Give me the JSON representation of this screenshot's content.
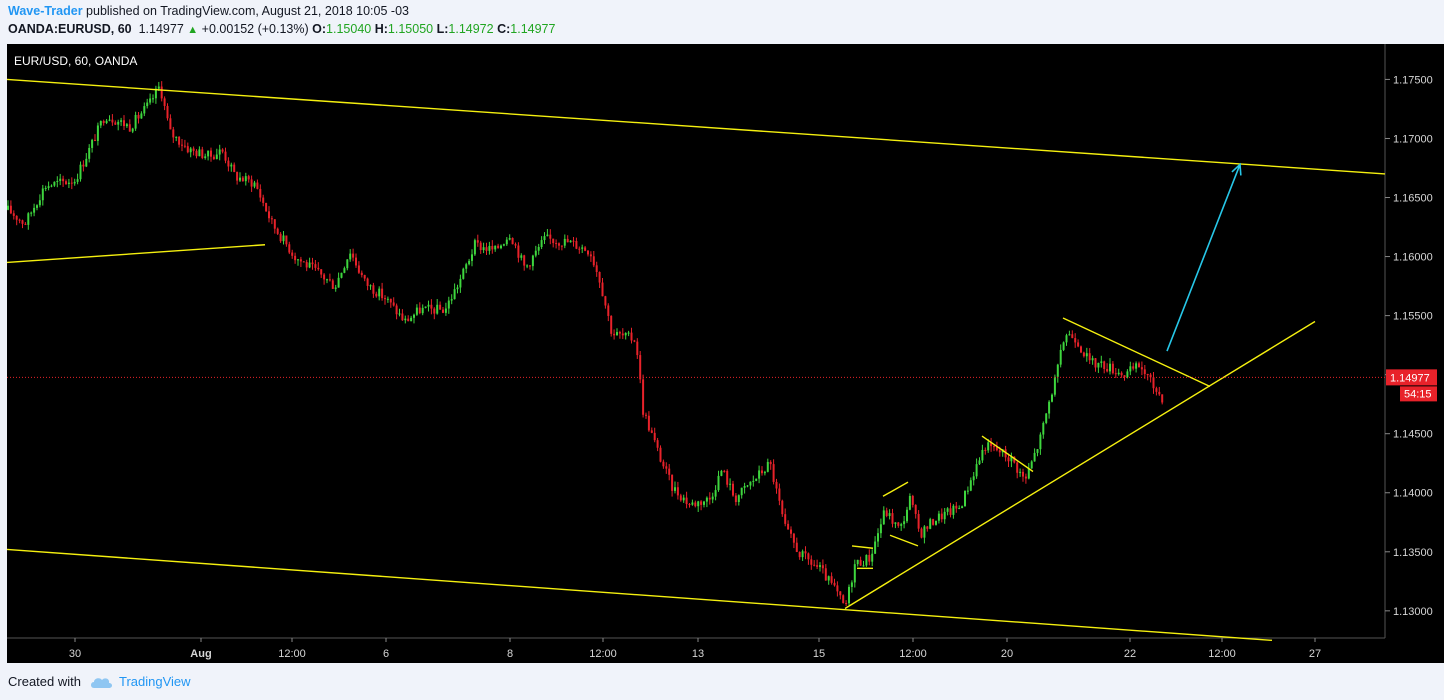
{
  "header": {
    "author": "Wave-Trader",
    "published_text": " published on TradingView.com, August 21, 2018 10:05 -03",
    "symbol": "OANDA:EURUSD, 60",
    "price": "1.14977",
    "change": "+0.00152 (+0.13%)",
    "o_label": "O:",
    "o_value": "1.15040",
    "h_label": "H:",
    "h_value": "1.15050",
    "l_label": "L:",
    "l_value": "1.14972",
    "c_label": "C:",
    "c_value": "1.14977"
  },
  "footer": {
    "created_with": "Created with",
    "brand": "TradingView"
  },
  "colors": {
    "background": "#000000",
    "up": "#3ed63e",
    "down": "#e8222a",
    "trendline": "#f5f00f",
    "arrow": "#27c7e8",
    "price_line": "#e8222a",
    "axis_bg": "#000000",
    "axis_text": "#d6d6d6"
  },
  "chart_data": {
    "type": "candlestick",
    "title": "EUR/USD, 60, OANDA",
    "x_tick_labels": [
      "30",
      "Aug",
      "12:00",
      "6",
      "8",
      "12:00",
      "13",
      "15",
      "12:00",
      "20",
      "22",
      "12:00",
      "27"
    ],
    "y_ticks": [
      "1.17500",
      "1.17000",
      "1.16500",
      "1.16000",
      "1.15500",
      "1.15000",
      "1.14500",
      "1.14000",
      "1.13500",
      "1.13000"
    ],
    "ylim": [
      1.1277,
      1.178
    ],
    "current_price": 1.14977,
    "current_price_label": "1.14977",
    "countdown_label": "54:15",
    "grid": false,
    "path": [
      [
        0,
        1.1645
      ],
      [
        25,
        1.1628
      ],
      [
        45,
        1.166
      ],
      [
        75,
        1.1665
      ],
      [
        90,
        1.1692
      ],
      [
        105,
        1.172
      ],
      [
        130,
        1.171
      ],
      [
        150,
        1.173
      ],
      [
        160,
        1.1745
      ],
      [
        170,
        1.1705
      ],
      [
        190,
        1.169
      ],
      [
        210,
        1.1685
      ],
      [
        222,
        1.169
      ],
      [
        235,
        1.1668
      ],
      [
        255,
        1.1662
      ],
      [
        272,
        1.1628
      ],
      [
        295,
        1.16
      ],
      [
        320,
        1.1585
      ],
      [
        335,
        1.1575
      ],
      [
        350,
        1.1605
      ],
      [
        365,
        1.1578
      ],
      [
        385,
        1.1565
      ],
      [
        405,
        1.1545
      ],
      [
        420,
        1.1555
      ],
      [
        445,
        1.1555
      ],
      [
        460,
        1.158
      ],
      [
        475,
        1.161
      ],
      [
        495,
        1.1605
      ],
      [
        510,
        1.162
      ],
      [
        525,
        1.159
      ],
      [
        545,
        1.1615
      ],
      [
        570,
        1.1612
      ],
      [
        590,
        1.1605
      ],
      [
        600,
        1.158
      ],
      [
        612,
        1.1535
      ],
      [
        625,
        1.1532
      ],
      [
        636,
        1.153
      ],
      [
        643,
        1.147
      ],
      [
        660,
        1.143
      ],
      [
        672,
        1.1405
      ],
      [
        690,
        1.139
      ],
      [
        710,
        1.1395
      ],
      [
        722,
        1.142
      ],
      [
        735,
        1.1395
      ],
      [
        755,
        1.1412
      ],
      [
        770,
        1.1425
      ],
      [
        785,
        1.137
      ],
      [
        800,
        1.1348
      ],
      [
        820,
        1.1335
      ],
      [
        835,
        1.1318
      ],
      [
        845,
        1.1302
      ],
      [
        855,
        1.134
      ],
      [
        870,
        1.1345
      ],
      [
        885,
        1.1385
      ],
      [
        900,
        1.1368
      ],
      [
        910,
        1.1395
      ],
      [
        920,
        1.1365
      ],
      [
        935,
        1.1378
      ],
      [
        960,
        1.1388
      ],
      [
        975,
        1.142
      ],
      [
        985,
        1.144
      ],
      [
        1000,
        1.1435
      ],
      [
        1012,
        1.1428
      ],
      [
        1025,
        1.141
      ],
      [
        1040,
        1.1445
      ],
      [
        1050,
        1.148
      ],
      [
        1058,
        1.1505
      ],
      [
        1065,
        1.1535
      ],
      [
        1075,
        1.1532
      ],
      [
        1090,
        1.151
      ],
      [
        1105,
        1.1508
      ],
      [
        1125,
        1.15
      ],
      [
        1140,
        1.1508
      ],
      [
        1155,
        1.1488
      ],
      [
        1165,
        1.1478
      ]
    ],
    "trendlines": [
      {
        "x1": 7,
        "y1": 1.175,
        "x2": 1385,
        "y2": 1.167
      },
      {
        "x1": 7,
        "y1": 1.1595,
        "x2": 265,
        "y2": 1.161
      },
      {
        "x1": 7,
        "y1": 1.1352,
        "x2": 1272,
        "y2": 1.1275
      },
      {
        "x1": 845,
        "y1": 1.1302,
        "x2": 1315,
        "y2": 1.1545
      },
      {
        "x1": 1063,
        "y1": 1.1548,
        "x2": 1210,
        "y2": 1.149
      },
      {
        "x1": 982,
        "y1": 1.1448,
        "x2": 1033,
        "y2": 1.1418
      },
      {
        "x1": 883,
        "y1": 1.1397,
        "x2": 908,
        "y2": 1.1409
      },
      {
        "x1": 890,
        "y1": 1.1364,
        "x2": 918,
        "y2": 1.1355
      },
      {
        "x1": 852,
        "y1": 1.1355,
        "x2": 873,
        "y2": 1.1353
      },
      {
        "x1": 857,
        "y1": 1.1336,
        "x2": 873,
        "y2": 1.1336
      }
    ],
    "arrow": {
      "x1": 1167,
      "y1": 1.152,
      "x2": 1240,
      "y2": 1.1678
    }
  }
}
